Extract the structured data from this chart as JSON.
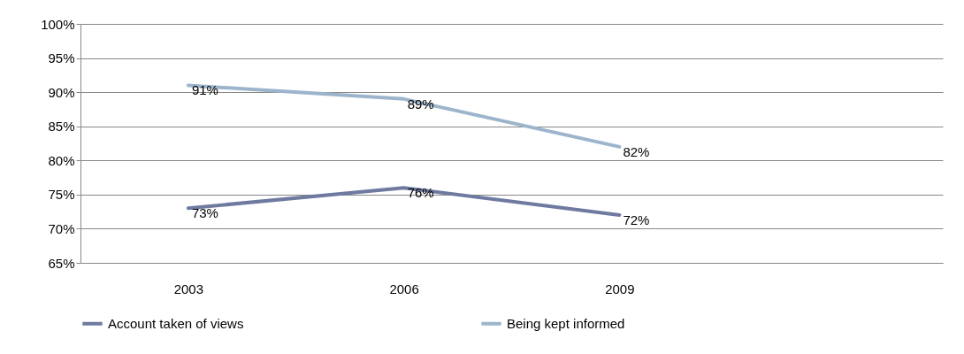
{
  "chart_data": {
    "type": "line",
    "categories": [
      "2003",
      "2006",
      "2009",
      null
    ],
    "series": [
      {
        "name": "Account taken of views",
        "color": "#6f7aa0",
        "values": [
          73,
          76,
          72,
          null
        ],
        "value_labels": [
          "73%",
          "76%",
          "72%",
          null
        ]
      },
      {
        "name": "Being kept informed",
        "color": "#9db5cc",
        "values": [
          91,
          89,
          82,
          null
        ],
        "value_labels": [
          "91%",
          "89%",
          "82%",
          null
        ]
      }
    ],
    "ylim": [
      65,
      100
    ],
    "yticks": [
      {
        "value": 65,
        "label": "65%"
      },
      {
        "value": 70,
        "label": "70%"
      },
      {
        "value": 75,
        "label": "75%"
      },
      {
        "value": 80,
        "label": "80%"
      },
      {
        "value": 85,
        "label": "85%"
      },
      {
        "value": 90,
        "label": "90%"
      },
      {
        "value": 95,
        "label": "95%"
      },
      {
        "value": 100,
        "label": "100%"
      }
    ],
    "grid": "y",
    "legend": "bottom",
    "marker": "none",
    "line_style": "solid"
  }
}
